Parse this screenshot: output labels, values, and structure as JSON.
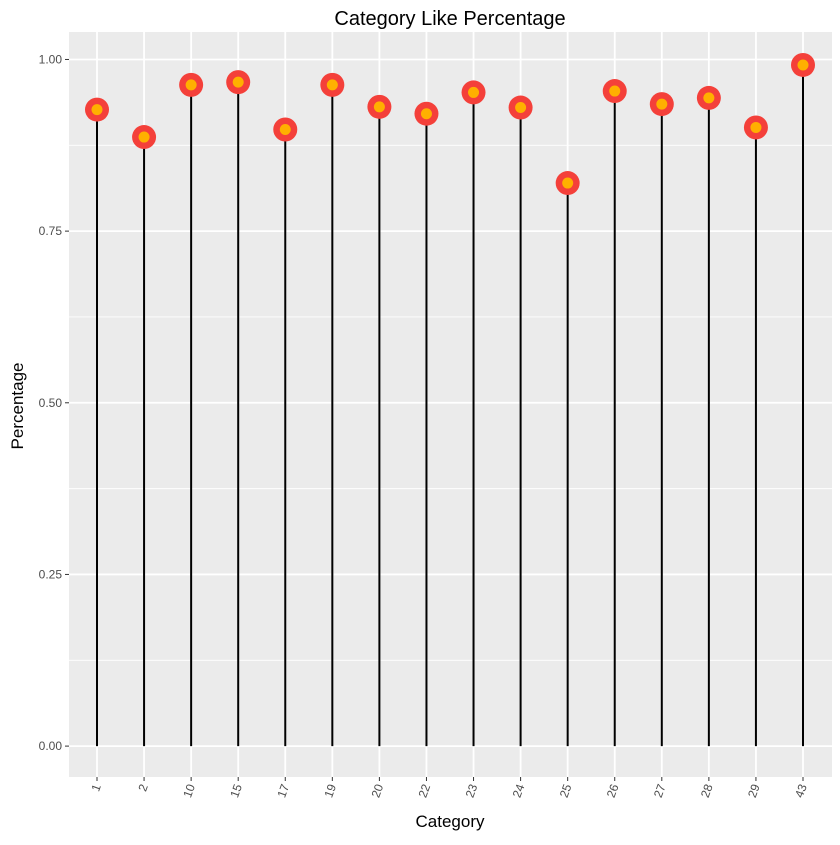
{
  "chart_data": {
    "type": "lollipop",
    "title": "Category Like Percentage",
    "xlabel": "Category",
    "ylabel": "Percentage",
    "categories": [
      "1",
      "2",
      "10",
      "15",
      "17",
      "19",
      "20",
      "22",
      "23",
      "24",
      "25",
      "26",
      "27",
      "28",
      "29",
      "43"
    ],
    "values": [
      0.927,
      0.887,
      0.963,
      0.967,
      0.898,
      0.963,
      0.931,
      0.921,
      0.952,
      0.93,
      0.82,
      0.954,
      0.935,
      0.944,
      0.901,
      0.992
    ],
    "ylim": [
      -0.045,
      1.04
    ],
    "y_ticks": [
      0.0,
      0.25,
      0.5,
      0.75,
      1.0
    ],
    "y_tick_labels": [
      "0.00",
      "0.25",
      "0.50",
      "0.75",
      "1.00"
    ],
    "grid": true,
    "colors": {
      "panel_background": "#EBEBEB",
      "grid": "#FFFFFF",
      "stem": "#000000",
      "point_outer": "#F4403A",
      "point_inner": "#FFB000",
      "text": "#000000",
      "tick_text": "#4D4D4D"
    }
  }
}
